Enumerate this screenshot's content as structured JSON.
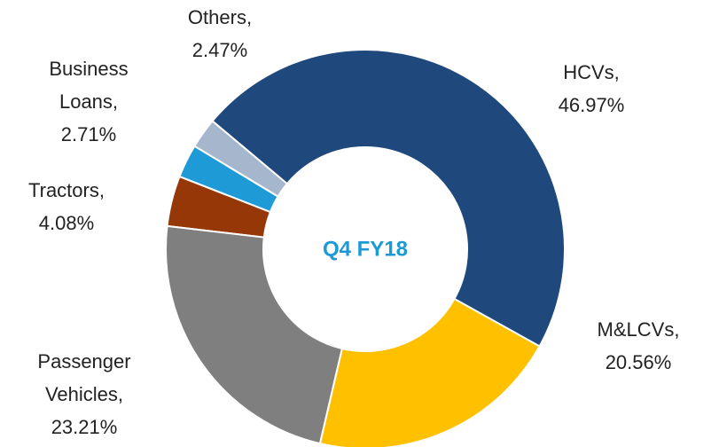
{
  "chart_data": {
    "type": "donut",
    "center_label": "Q4 FY18",
    "categories": [
      "HCVs,",
      "M&LCVs,",
      "Passenger Vehicles,",
      "Tractors,",
      "Business Loans,",
      "Others,"
    ],
    "values": [
      46.97,
      20.56,
      23.21,
      4.08,
      2.71,
      2.47
    ],
    "value_labels": [
      "46.97%",
      "20.56%",
      "23.21%",
      "4.08%",
      "2.71%",
      "2.47%"
    ],
    "colors": [
      "#1f497d",
      "#ffc000",
      "#7f7f7f",
      "#953707",
      "#1e9bd7",
      "#a6b6cc"
    ]
  }
}
